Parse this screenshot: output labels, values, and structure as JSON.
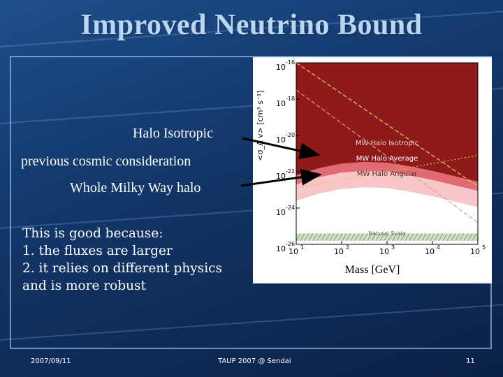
{
  "slide": {
    "title": "Improved Neutrino Bound",
    "labels": {
      "halo_isotropic": "Halo Isotropic",
      "previous_cosmic": "previous cosmic consideration",
      "whole_milky_way": "Whole Milky Way halo"
    },
    "body_lines": [
      "This is good because:",
      "1. the fluxes are larger",
      "2. it relies on different physics",
      "and is more robust"
    ],
    "footer": {
      "date": "2007/09/11",
      "conference": "TAUP 2007 @ Sendai",
      "page": "11"
    },
    "colors": {
      "isotropic": "#8e1a1a",
      "average": "#e06b73",
      "angular": "#f7c6c9",
      "arrow": "#000000"
    }
  },
  "chart_data": {
    "type": "area",
    "xlabel": "Mass [GeV]",
    "ylabel": "<σ_A v> [cm³ s⁻¹]",
    "x_scale": "log",
    "y_scale": "log",
    "xlim": [
      10,
      100000
    ],
    "ylim": [
      1e-26,
      1e-16
    ],
    "x_ticks": [
      {
        "value": 10,
        "base": "10",
        "exp": "1"
      },
      {
        "value": 100,
        "base": "10",
        "exp": "2"
      },
      {
        "value": 1000,
        "base": "10",
        "exp": "3"
      },
      {
        "value": 10000,
        "base": "10",
        "exp": "4"
      },
      {
        "value": 100000,
        "base": "10",
        "exp": "5"
      }
    ],
    "y_ticks": [
      {
        "value": 1e-16,
        "base": "10",
        "exp": "-16"
      },
      {
        "value": 1e-18,
        "base": "10",
        "exp": "-18"
      },
      {
        "value": 1e-20,
        "base": "10",
        "exp": "-20"
      },
      {
        "value": 1e-22,
        "base": "10",
        "exp": "-22"
      },
      {
        "value": 1e-24,
        "base": "10",
        "exp": "-24"
      },
      {
        "value": 1e-26,
        "base": "10",
        "exp": "-26"
      }
    ],
    "region_labels": [
      "MW Halo Isotropic",
      "MW Halo Average",
      "MW Halo Angular",
      "Natural Scale"
    ],
    "series": [
      {
        "name": "MW Halo Isotropic",
        "x": [
          10,
          31.6,
          100,
          316,
          1000,
          3162,
          10000,
          31623,
          100000
        ],
        "y_exp": [
          -22.2,
          -21.8,
          -21.55,
          -21.45,
          -21.5,
          -21.7,
          -21.95,
          -22.25,
          -22.55
        ]
      },
      {
        "name": "MW Halo Average",
        "x": [
          10,
          31.6,
          100,
          316,
          1000,
          3162,
          10000,
          31623,
          100000
        ],
        "y_exp": [
          -22.7,
          -22.3,
          -22.05,
          -21.95,
          -22.0,
          -22.2,
          -22.45,
          -22.75,
          -23.05
        ]
      },
      {
        "name": "MW Halo Angular",
        "x": [
          10,
          31.6,
          100,
          316,
          1000,
          3162,
          10000,
          31623,
          100000
        ],
        "y_exp": [
          -23.6,
          -23.2,
          -22.95,
          -22.85,
          -22.9,
          -23.1,
          -23.35,
          -23.65,
          -23.95
        ]
      }
    ],
    "natural_scale_y_exp": [
      -25.8,
      -25.4
    ],
    "dashed_lines": [
      {
        "x": [
          10,
          100000
        ],
        "y_exp": [
          -17.5,
          -24.8
        ]
      },
      {
        "x": [
          10,
          100000
        ],
        "y_exp": [
          -16.0,
          -22.8
        ]
      }
    ],
    "dotted_line": {
      "x": [
        10,
        100000
      ],
      "y_exp": [
        -22.9,
        -21.1
      ]
    }
  }
}
